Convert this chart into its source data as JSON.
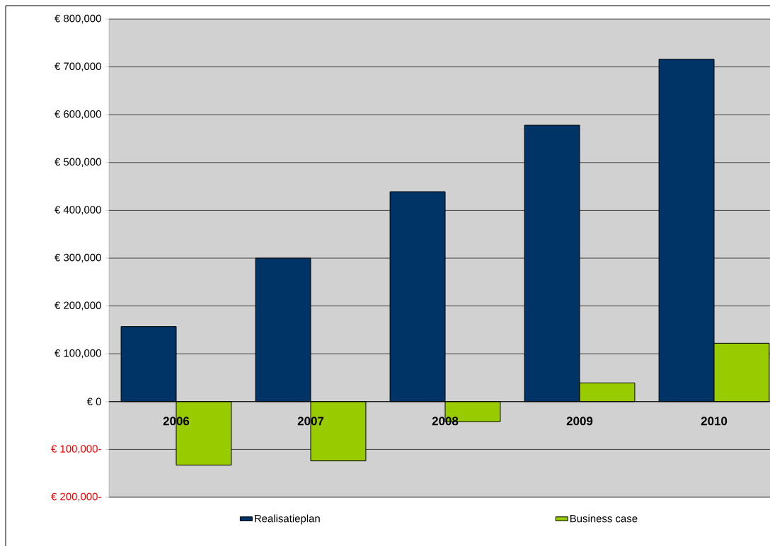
{
  "chart_data": {
    "type": "bar",
    "categories": [
      "2006",
      "2007",
      "2008",
      "2009",
      "2010"
    ],
    "series": [
      {
        "name": "Realisatieplan",
        "color": "#003366",
        "values": [
          157000,
          300000,
          439000,
          578000,
          716000
        ]
      },
      {
        "name": "Business case",
        "color": "#99cc00",
        "values": [
          -133000,
          -124000,
          -42000,
          39000,
          122000
        ]
      }
    ],
    "ylim": [
      -200000,
      800000
    ],
    "yticks": [
      {
        "value": -200000,
        "label": "€ 200,000-"
      },
      {
        "value": -100000,
        "label": "€ 100,000-"
      },
      {
        "value": 0,
        "label": "€ 0"
      },
      {
        "value": 100000,
        "label": "€ 100,000"
      },
      {
        "value": 200000,
        "label": "€ 200,000"
      },
      {
        "value": 300000,
        "label": "€ 300,000"
      },
      {
        "value": 400000,
        "label": "€ 400,000"
      },
      {
        "value": 500000,
        "label": "€ 500,000"
      },
      {
        "value": 600000,
        "label": "€ 600,000"
      },
      {
        "value": 700000,
        "label": "€ 700,000"
      },
      {
        "value": 800000,
        "label": "€ 800,000"
      }
    ],
    "grid": "y",
    "legend": "bottom"
  }
}
